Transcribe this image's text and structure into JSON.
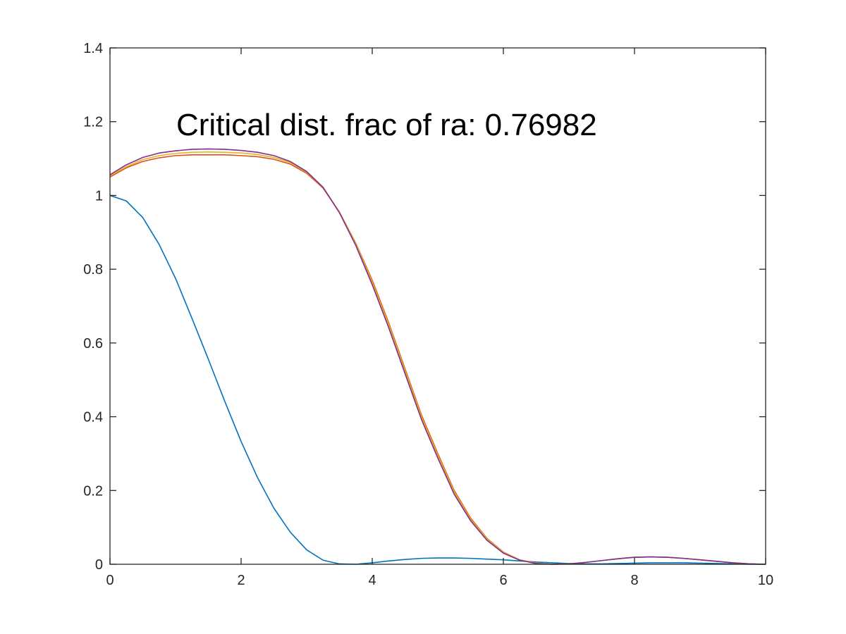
{
  "chart_data": {
    "type": "line",
    "title": "",
    "xlabel": "",
    "ylabel": "",
    "xlim": [
      0,
      10
    ],
    "ylim": [
      0,
      1.4
    ],
    "grid": false,
    "xticks": [
      "0",
      "2",
      "4",
      "6",
      "8",
      "10"
    ],
    "yticks": [
      "0",
      "0.2",
      "0.4",
      "0.6",
      "0.8",
      "1",
      "1.2",
      "1.4"
    ],
    "annotation": "Critical dist. frac of ra: 0.76982",
    "series": [
      {
        "color": "#0072bd",
        "x": [
          0,
          0.25,
          0.5,
          0.75,
          1,
          1.25,
          1.5,
          1.75,
          2,
          2.25,
          2.5,
          2.75,
          3,
          3.25,
          3.5,
          3.75,
          4,
          4.25,
          4.5,
          4.75,
          5,
          5.25,
          5.5,
          5.75,
          6,
          6.25,
          6.5,
          6.75,
          7,
          7.25,
          7.5,
          7.75,
          8,
          8.25,
          8.5,
          8.75,
          9,
          9.25,
          9.5,
          9.75,
          10
        ],
        "y": [
          1.0,
          0.985,
          0.94,
          0.867,
          0.775,
          0.667,
          0.556,
          0.442,
          0.333,
          0.235,
          0.152,
          0.087,
          0.039,
          0.011,
          0.001,
          0.0,
          0.004,
          0.009,
          0.013,
          0.016,
          0.017,
          0.017,
          0.016,
          0.014,
          0.012,
          0.009,
          0.006,
          0.004,
          0.002,
          0.001,
          0.001,
          0.002,
          0.003,
          0.004,
          0.004,
          0.004,
          0.003,
          0.002,
          0.001,
          0.0,
          0.0
        ]
      },
      {
        "color": "#d95319",
        "x": [
          0,
          0.25,
          0.5,
          0.75,
          1,
          1.25,
          1.5,
          1.75,
          2,
          2.25,
          2.5,
          2.75,
          3,
          3.25,
          3.5,
          3.75,
          4,
          4.25,
          4.5,
          4.75,
          5,
          5.25,
          5.5,
          5.75,
          6,
          6.25,
          6.5,
          6.75,
          7,
          7.25,
          7.5,
          7.75,
          8,
          8.25,
          8.5,
          8.75,
          9,
          9.25,
          9.5,
          9.75,
          10
        ],
        "y": [
          1.05,
          1.075,
          1.092,
          1.102,
          1.108,
          1.11,
          1.11,
          1.11,
          1.108,
          1.105,
          1.098,
          1.085,
          1.06,
          1.02,
          0.955,
          0.87,
          0.77,
          0.655,
          0.53,
          0.405,
          0.3,
          0.2,
          0.125,
          0.07,
          0.033,
          0.012,
          0.003,
          0.0,
          0.001,
          0.005,
          0.01,
          0.015,
          0.019,
          0.02,
          0.019,
          0.016,
          0.012,
          0.008,
          0.004,
          0.001,
          0.0
        ]
      },
      {
        "color": "#edb120",
        "x": [
          0,
          0.25,
          0.5,
          0.75,
          1,
          1.25,
          1.5,
          1.75,
          2,
          2.25,
          2.5,
          2.75,
          3,
          3.25,
          3.5,
          3.75,
          4,
          4.25,
          4.5,
          4.75,
          5,
          5.25,
          5.5,
          5.75,
          6,
          6.25,
          6.5,
          6.75,
          7,
          7.25,
          7.5,
          7.75,
          8,
          8.25,
          8.5,
          8.75,
          9,
          9.25,
          9.5,
          9.75,
          10
        ],
        "y": [
          1.053,
          1.078,
          1.097,
          1.108,
          1.114,
          1.117,
          1.118,
          1.117,
          1.115,
          1.111,
          1.103,
          1.089,
          1.063,
          1.022,
          0.955,
          0.868,
          0.765,
          0.65,
          0.525,
          0.4,
          0.295,
          0.196,
          0.122,
          0.068,
          0.032,
          0.012,
          0.003,
          0.0,
          0.001,
          0.005,
          0.01,
          0.015,
          0.019,
          0.02,
          0.019,
          0.016,
          0.012,
          0.008,
          0.004,
          0.001,
          0.0
        ]
      },
      {
        "color": "#7e2f8e",
        "x": [
          0,
          0.25,
          0.5,
          0.75,
          1,
          1.25,
          1.5,
          1.75,
          2,
          2.25,
          2.5,
          2.75,
          3,
          3.25,
          3.5,
          3.75,
          4,
          4.25,
          4.5,
          4.75,
          5,
          5.25,
          5.5,
          5.75,
          6,
          6.25,
          6.5,
          6.75,
          7,
          7.25,
          7.5,
          7.75,
          8,
          8.25,
          8.5,
          8.75,
          9,
          9.25,
          9.5,
          9.75,
          10
        ],
        "y": [
          1.056,
          1.083,
          1.103,
          1.115,
          1.121,
          1.125,
          1.126,
          1.125,
          1.122,
          1.117,
          1.108,
          1.092,
          1.065,
          1.022,
          0.953,
          0.864,
          0.758,
          0.642,
          0.517,
          0.393,
          0.288,
          0.19,
          0.118,
          0.065,
          0.03,
          0.011,
          0.002,
          0.0,
          0.001,
          0.005,
          0.01,
          0.015,
          0.019,
          0.02,
          0.019,
          0.016,
          0.012,
          0.008,
          0.004,
          0.001,
          0.0
        ]
      }
    ]
  }
}
